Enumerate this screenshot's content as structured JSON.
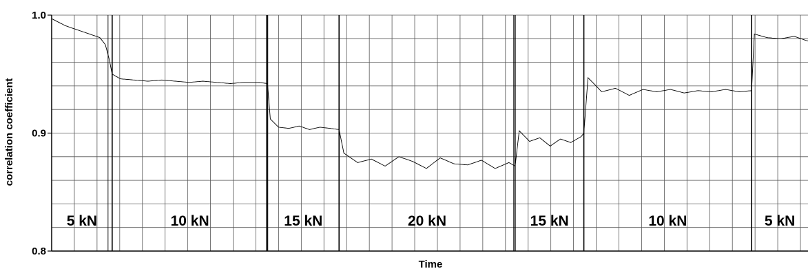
{
  "chart_data": {
    "type": "line",
    "xlabel": "Time",
    "ylabel": "correlation coefficient",
    "ylim": [
      0.8,
      1.0
    ],
    "y_ticks": [
      "0.8",
      "0.9",
      "1.0"
    ],
    "grid": true,
    "segments": [
      {
        "label": "5 kN",
        "x_start": 0,
        "x_end": 88,
        "level": 0.99
      },
      {
        "label": "10 kN",
        "x_start": 88,
        "x_end": 314,
        "level": 0.945
      },
      {
        "label": "15 kN",
        "x_start": 314,
        "x_end": 418,
        "level": 0.905
      },
      {
        "label": "20 kN",
        "x_start": 418,
        "x_end": 674,
        "level": 0.875
      },
      {
        "label": "15 kN",
        "x_start": 674,
        "x_end": 774,
        "level": 0.895
      },
      {
        "label": "10 kN",
        "x_start": 774,
        "x_end": 1018,
        "level": 0.94
      },
      {
        "label": "5 kN",
        "x_start": 1018,
        "x_end": 1100,
        "level": 0.98
      }
    ],
    "series": [
      {
        "x": [
          0,
          10,
          20,
          30,
          40,
          50,
          60,
          70,
          78,
          84,
          88,
          100,
          120,
          140,
          160,
          180,
          200,
          220,
          240,
          260,
          280,
          300,
          314,
          318,
          330,
          345,
          360,
          375,
          390,
          405,
          418,
          425,
          445,
          465,
          485,
          505,
          525,
          545,
          565,
          585,
          605,
          625,
          645,
          665,
          674,
          680,
          695,
          710,
          725,
          740,
          755,
          770,
          774,
          780,
          800,
          820,
          840,
          860,
          880,
          900,
          920,
          940,
          960,
          980,
          1000,
          1018,
          1022,
          1040,
          1060,
          1080,
          1100
        ],
        "y": [
          0.997,
          0.994,
          0.991,
          0.989,
          0.987,
          0.985,
          0.983,
          0.981,
          0.975,
          0.962,
          0.95,
          0.946,
          0.945,
          0.944,
          0.945,
          0.944,
          0.943,
          0.944,
          0.943,
          0.942,
          0.943,
          0.943,
          0.942,
          0.912,
          0.905,
          0.904,
          0.906,
          0.903,
          0.905,
          0.904,
          0.903,
          0.883,
          0.875,
          0.878,
          0.872,
          0.88,
          0.876,
          0.87,
          0.879,
          0.874,
          0.873,
          0.877,
          0.87,
          0.875,
          0.872,
          0.902,
          0.893,
          0.896,
          0.889,
          0.895,
          0.892,
          0.897,
          0.9,
          0.947,
          0.935,
          0.938,
          0.932,
          0.937,
          0.935,
          0.937,
          0.934,
          0.936,
          0.935,
          0.937,
          0.935,
          0.936,
          0.984,
          0.981,
          0.98,
          0.982,
          0.978
        ]
      }
    ]
  }
}
